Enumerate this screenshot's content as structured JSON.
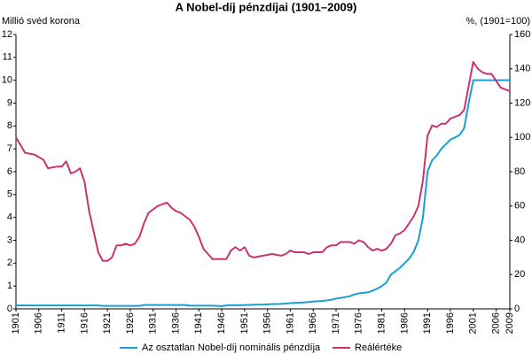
{
  "chart_data": {
    "type": "line",
    "title": "A Nobel-díj pénzdíjai (1901–2009)",
    "y_label": "Millió svéd korona",
    "y2_label": "%, (1901=100)",
    "x": [
      1901,
      1903,
      1905,
      1907,
      1908,
      1910,
      1911,
      1912,
      1913,
      1914,
      1915,
      1916,
      1917,
      1918,
      1919,
      1920,
      1921,
      1922,
      1923,
      1924,
      1925,
      1926,
      1927,
      1928,
      1929,
      1930,
      1931,
      1932,
      1933,
      1934,
      1935,
      1936,
      1937,
      1938,
      1939,
      1940,
      1941,
      1942,
      1943,
      1944,
      1946,
      1947,
      1948,
      1949,
      1950,
      1951,
      1952,
      1953,
      1955,
      1957,
      1959,
      1960,
      1961,
      1962,
      1964,
      1965,
      1966,
      1968,
      1969,
      1970,
      1971,
      1972,
      1974,
      1975,
      1976,
      1977,
      1978,
      1979,
      1980,
      1981,
      1982,
      1983,
      1984,
      1985,
      1986,
      1987,
      1988,
      1989,
      1990,
      1991,
      1992,
      1993,
      1994,
      1995,
      1996,
      1997,
      1998,
      1999,
      2000,
      2001,
      2002,
      2003,
      2004,
      2005,
      2006,
      2007,
      2008,
      2009
    ],
    "series": [
      {
        "name": "Az osztatlan Nobel-díj nominális pénzdíja",
        "color": "#1a9fd4",
        "axis": "y",
        "values": [
          0.15,
          0.15,
          0.15,
          0.15,
          0.15,
          0.15,
          0.15,
          0.15,
          0.15,
          0.15,
          0.15,
          0.15,
          0.15,
          0.15,
          0.15,
          0.13,
          0.13,
          0.13,
          0.13,
          0.13,
          0.13,
          0.13,
          0.13,
          0.13,
          0.17,
          0.17,
          0.17,
          0.17,
          0.17,
          0.17,
          0.17,
          0.17,
          0.17,
          0.17,
          0.14,
          0.14,
          0.14,
          0.14,
          0.14,
          0.14,
          0.12,
          0.15,
          0.16,
          0.16,
          0.16,
          0.17,
          0.17,
          0.18,
          0.19,
          0.21,
          0.22,
          0.23,
          0.25,
          0.26,
          0.28,
          0.3,
          0.32,
          0.35,
          0.37,
          0.4,
          0.45,
          0.48,
          0.55,
          0.63,
          0.68,
          0.7,
          0.72,
          0.8,
          0.88,
          1.0,
          1.15,
          1.5,
          1.65,
          1.8,
          2.0,
          2.2,
          2.5,
          3.0,
          4.0,
          6.0,
          6.5,
          6.7,
          7.0,
          7.2,
          7.4,
          7.5,
          7.6,
          7.9,
          9.0,
          10,
          10,
          10,
          10,
          10,
          10,
          10,
          10,
          10
        ]
      },
      {
        "name": "Reálértéke",
        "color": "#c8336e",
        "axis": "y2",
        "values": [
          100,
          91,
          90,
          87,
          82,
          83,
          83,
          86,
          79,
          80,
          82,
          74,
          57,
          45,
          33,
          28,
          28,
          30,
          37,
          37,
          38,
          37,
          38,
          42,
          50,
          56,
          58,
          60,
          61,
          62,
          59,
          57,
          56,
          54,
          52,
          48,
          42,
          35,
          32,
          29,
          29,
          29,
          34,
          36,
          34,
          36,
          31,
          30,
          31,
          32,
          31,
          32,
          34,
          33,
          33,
          32,
          33,
          33,
          36,
          37,
          37,
          39,
          39,
          38,
          40,
          39,
          36,
          34,
          35,
          34,
          35,
          38,
          43,
          44,
          46,
          50,
          54,
          60,
          75,
          101,
          107,
          106,
          108,
          108,
          111,
          112,
          113,
          116,
          130,
          144,
          140,
          138,
          137,
          137,
          133,
          129,
          128,
          127
        ]
      }
    ],
    "xlim": [
      1901,
      2009
    ],
    "xticks": [
      1901,
      1906,
      1911,
      1916,
      1921,
      1926,
      1931,
      1936,
      1941,
      1946,
      1951,
      1956,
      1961,
      1966,
      1971,
      1976,
      1981,
      1986,
      1991,
      1996,
      2001,
      2006,
      2009
    ],
    "ylim": [
      0,
      12
    ],
    "yticks": [
      0,
      1,
      2,
      3,
      4,
      5,
      6,
      7,
      8,
      9,
      10,
      11,
      12
    ],
    "y2lim": [
      0,
      160
    ],
    "y2ticks": [
      0,
      20,
      40,
      60,
      80,
      100,
      120,
      140,
      160
    ],
    "legend": "bottom"
  }
}
